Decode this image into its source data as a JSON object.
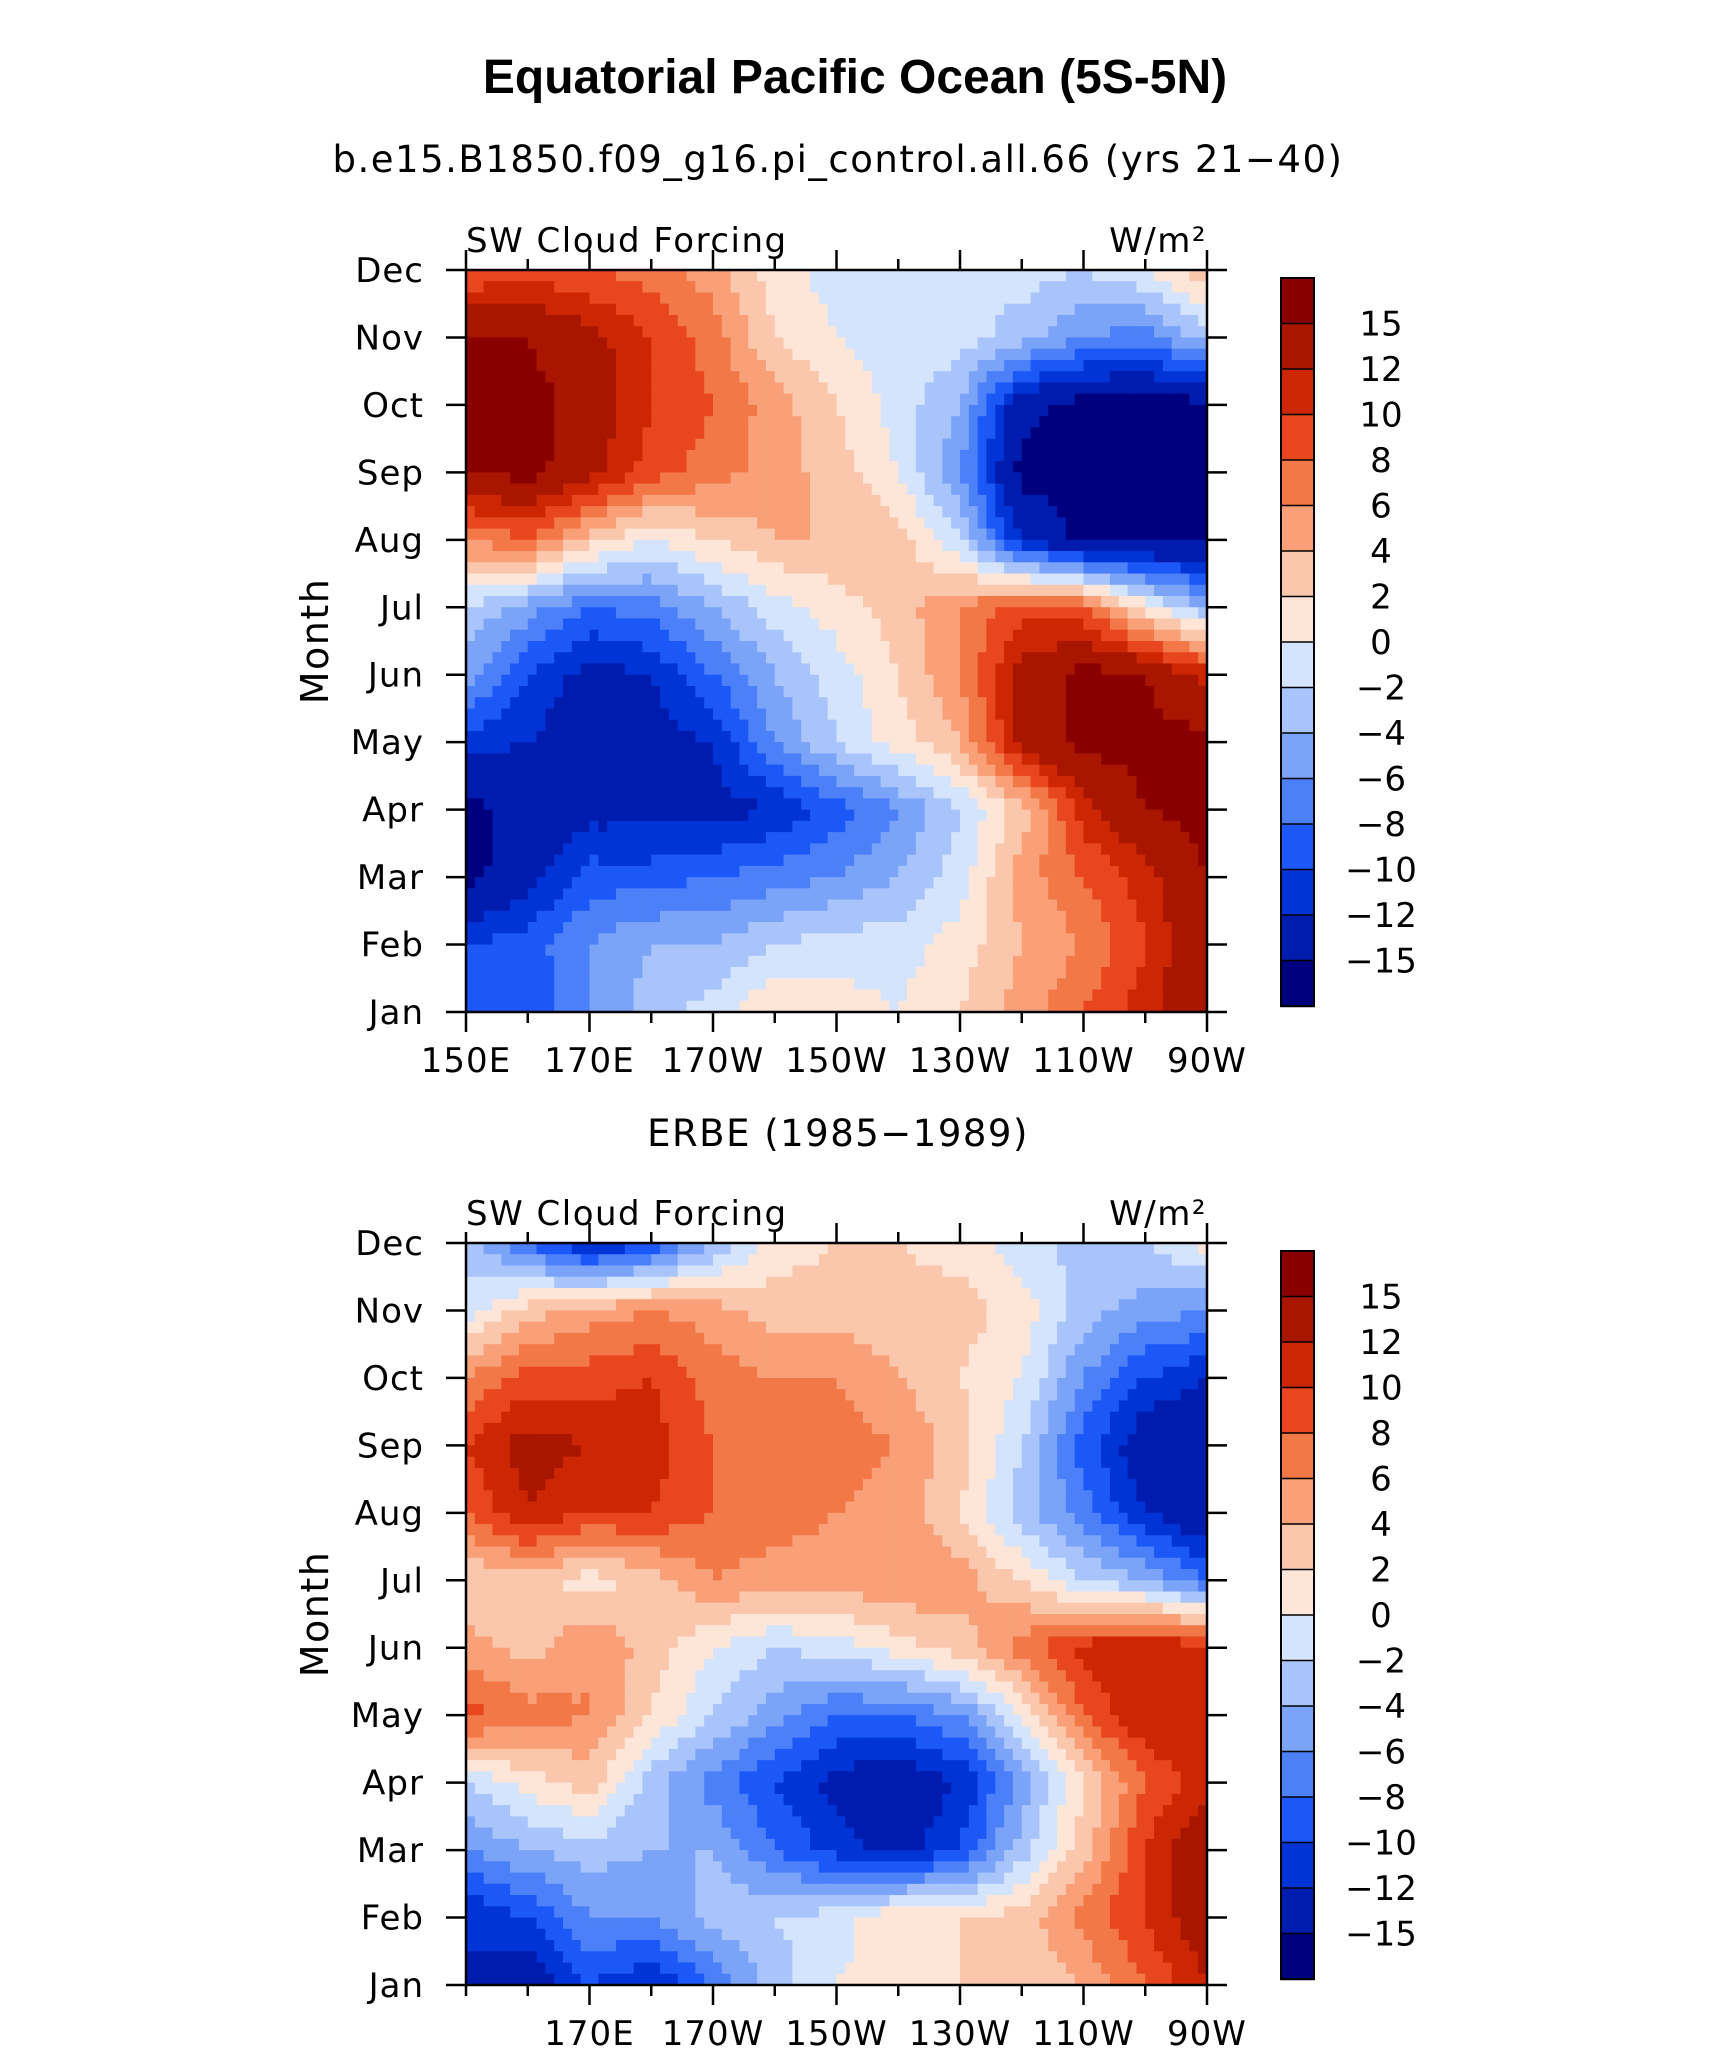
{
  "title": "Equatorial Pacific Ocean (5S-5N)",
  "colormap": [
    "#00007f",
    "#001cae",
    "#0034d7",
    "#1c58f7",
    "#4b80f9",
    "#7ba4f9",
    "#a8c4fb",
    "#d4e4fc",
    "#fde6d8",
    "#fbc7ac",
    "#f9a078",
    "#f27848",
    "#e8461e",
    "#cc2602",
    "#a81600",
    "#8a0000"
  ],
  "contour_levels": [
    -15,
    -12,
    -10,
    -8,
    -6,
    -4,
    -2,
    0,
    2,
    4,
    6,
    8,
    10,
    12,
    15
  ],
  "chart_data": [
    {
      "type": "heatmap",
      "title": "b.e15.B1850.f09_g16.pi_control.all.66 (yrs 21−40)",
      "left_label": "SW Cloud Forcing",
      "units": "W/m²",
      "ylabel": "Month",
      "xlabel": "",
      "x_ticks": [
        "150E",
        "170E",
        "170W",
        "150W",
        "130W",
        "110W",
        "90W"
      ],
      "x_tick_lon": [
        150,
        170,
        190,
        210,
        230,
        250,
        270
      ],
      "xlim": [
        150,
        270
      ],
      "months": [
        "Jan",
        "Feb",
        "Mar",
        "Apr",
        "May",
        "Jun",
        "Jul",
        "Aug",
        "Sep",
        "Oct",
        "Nov",
        "Dec"
      ],
      "colorbar_labels": [
        "15",
        "12",
        "10",
        "8",
        "6",
        "4",
        "2",
        "0",
        "−2",
        "−4",
        "−6",
        "−8",
        "−10",
        "−12",
        "−15"
      ],
      "grid_lon": [
        150,
        160,
        170,
        180,
        190,
        200,
        210,
        220,
        230,
        240,
        250,
        260,
        270
      ],
      "grid_values": [
        [
          -10,
          -10,
          -6,
          -3,
          -1,
          2,
          1,
          0,
          2,
          5,
          8,
          11,
          15
        ],
        [
          -10,
          -9,
          -6,
          -4,
          -4,
          -2,
          -1,
          -1,
          1,
          4,
          6,
          10,
          15
        ],
        [
          -16,
          -13,
          -9,
          -9,
          -8,
          -7,
          -6,
          -4,
          -1,
          5,
          8,
          11,
          15
        ],
        [
          -16,
          -14,
          -13,
          -13,
          -13,
          -12,
          -9,
          -6,
          -2,
          3,
          11,
          15,
          16
        ],
        [
          -11,
          -12,
          -14,
          -13,
          -12,
          -6,
          -2,
          1,
          4,
          13,
          16,
          16,
          16
        ],
        [
          -5,
          -10,
          -13,
          -12,
          -8,
          -4,
          -1,
          2,
          6,
          13,
          16,
          15,
          11
        ],
        [
          -2,
          -5,
          -8,
          -7,
          -4,
          -1,
          1,
          3,
          6,
          9,
          8,
          1,
          -4
        ],
        [
          6,
          8,
          3,
          0,
          2,
          4,
          4,
          3,
          -2,
          -12,
          -16,
          -16,
          -16
        ],
        [
          15,
          16,
          13,
          9,
          7,
          5,
          3,
          0,
          -6,
          -16,
          -16,
          -16,
          -16
        ],
        [
          16,
          16,
          14,
          10,
          8,
          5,
          2,
          -1,
          -4,
          -14,
          -16,
          -16,
          -16
        ],
        [
          15,
          15,
          13,
          10,
          7,
          2,
          0,
          -1,
          -1,
          -3,
          -6,
          -7,
          -3
        ],
        [
          8,
          9,
          8,
          7,
          5,
          1,
          -1,
          -2,
          -2,
          -1,
          -2,
          0,
          4
        ]
      ]
    },
    {
      "type": "heatmap",
      "title": "ERBE (1985−1989)",
      "left_label": "SW Cloud Forcing",
      "units": "W/m²",
      "ylabel": "Month",
      "xlabel": "",
      "x_ticks": [
        "170E",
        "170W",
        "150W",
        "130W",
        "110W",
        "90W"
      ],
      "x_tick_lon": [
        170,
        190,
        210,
        230,
        250,
        270
      ],
      "xlim": [
        150,
        270
      ],
      "months": [
        "Jan",
        "Feb",
        "Mar",
        "Apr",
        "May",
        "Jun",
        "Jul",
        "Aug",
        "Sep",
        "Oct",
        "Nov",
        "Dec"
      ],
      "colorbar_labels": [
        "15",
        "12",
        "10",
        "8",
        "6",
        "4",
        "2",
        "0",
        "−2",
        "−4",
        "−6",
        "−8",
        "−10",
        "−12",
        "−15"
      ],
      "grid_lon": [
        150,
        160,
        170,
        180,
        190,
        200,
        210,
        220,
        230,
        240,
        250,
        260,
        270
      ],
      "grid_values": [
        [
          -12,
          -14,
          -10,
          -12,
          -8,
          -3,
          0,
          1,
          2,
          2,
          4,
          8,
          12
        ],
        [
          -12,
          -10,
          -6,
          -6,
          -3,
          -2,
          -1,
          2,
          2,
          3,
          7,
          10,
          14
        ],
        [
          -6,
          -4,
          -3,
          -4,
          -4,
          -8,
          -11,
          -13,
          -10,
          -3,
          3,
          10,
          15
        ],
        [
          -2,
          1,
          3,
          -3,
          -7,
          -10,
          -13,
          -14,
          -12,
          -5,
          2,
          8,
          11
        ],
        [
          9,
          7,
          6,
          2,
          -2,
          -5,
          -8,
          -8,
          -6,
          0,
          8,
          12,
          12
        ],
        [
          5,
          3,
          6,
          3,
          0,
          -2,
          -1,
          1,
          3,
          7,
          11,
          12,
          11
        ],
        [
          2,
          3,
          1,
          3,
          6,
          5,
          5,
          6,
          5,
          2,
          -2,
          -4,
          -8
        ],
        [
          8,
          12,
          10,
          10,
          8,
          7,
          6,
          5,
          2,
          -3,
          -7,
          -12,
          -15
        ],
        [
          10,
          13,
          12,
          11,
          8,
          7,
          7,
          6,
          3,
          -2,
          -9,
          -14,
          -15
        ],
        [
          6,
          9,
          9,
          10,
          7,
          6,
          6,
          4,
          2,
          0,
          -6,
          -10,
          -12
        ],
        [
          -1,
          3,
          5,
          6,
          5,
          3,
          3,
          3,
          3,
          1,
          -3,
          -5,
          -6
        ],
        [
          -3,
          -8,
          -13,
          -10,
          -4,
          1,
          2,
          2,
          1,
          -1,
          -3,
          -2,
          1
        ]
      ]
    }
  ]
}
